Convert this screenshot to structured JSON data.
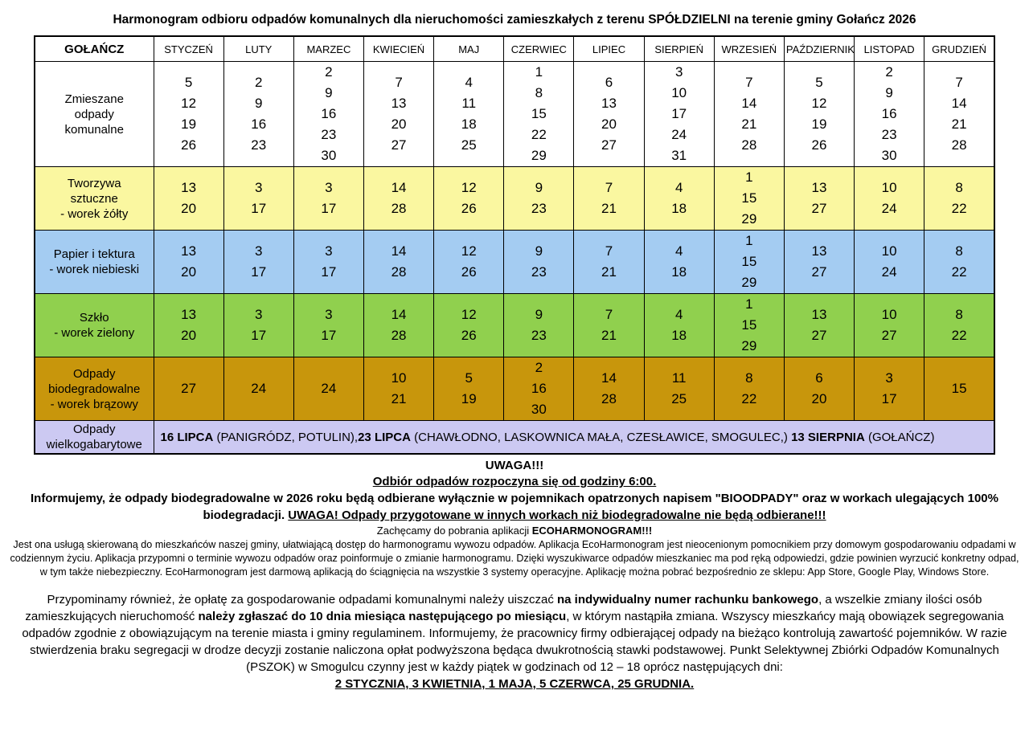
{
  "title": "Harmonogram odbioru odpadów komunalnych dla nieruchomości zamieszkałych z terenu SPÓŁDZIELNI na terenie gminy Gołańcz 2026",
  "colors": {
    "mixed_row_bg": "#FFFFFF",
    "plastic_row_bg": "#FAF7A0",
    "paper_row_bg": "#A4CCF2",
    "glass_row_bg": "#90D04E",
    "bio_row_bg": "#C8960C",
    "bulky_row_bg": "#CCC9F2",
    "border": "#000000"
  },
  "table": {
    "corner_label": "GOŁAŃCZ",
    "months": [
      "STYCZEŃ",
      "LUTY",
      "MARZEC",
      "KWIECIEŃ",
      "MAJ",
      "CZERWIEC",
      "LIPIEC",
      "SIERPIEŃ",
      "WRZESIEŃ",
      "PAŹDZIERNIK",
      "LISTOPAD",
      "GRUDZIEŃ"
    ],
    "rows": [
      {
        "id": "mixed-municipal-waste",
        "label_lines": [
          "Zmieszane",
          "odpady",
          "komunalne"
        ],
        "bg": "#FFFFFF",
        "cells": [
          [
            5,
            12,
            19,
            26
          ],
          [
            2,
            9,
            16,
            23
          ],
          [
            2,
            9,
            16,
            23,
            30
          ],
          [
            7,
            13,
            20,
            27
          ],
          [
            4,
            11,
            18,
            25
          ],
          [
            1,
            8,
            15,
            22,
            29
          ],
          [
            6,
            13,
            20,
            27
          ],
          [
            3,
            10,
            17,
            24,
            31
          ],
          [
            7,
            14,
            21,
            28
          ],
          [
            5,
            12,
            19,
            26
          ],
          [
            2,
            9,
            16,
            23,
            30
          ],
          [
            7,
            14,
            21,
            28
          ]
        ]
      },
      {
        "id": "plastics-yellow-bag",
        "label_lines": [
          "Tworzywa",
          "sztuczne",
          "- worek żółty"
        ],
        "bg": "#FAF7A0",
        "cells": [
          [
            13,
            20
          ],
          [
            3,
            17
          ],
          [
            3,
            17
          ],
          [
            14,
            28
          ],
          [
            12,
            26
          ],
          [
            9,
            23
          ],
          [
            7,
            21
          ],
          [
            4,
            18
          ],
          [
            1,
            15,
            29
          ],
          [
            13,
            27
          ],
          [
            10,
            24
          ],
          [
            8,
            22
          ]
        ]
      },
      {
        "id": "paper-blue-bag",
        "label_lines": [
          "Papier i tektura",
          "- worek niebieski"
        ],
        "bg": "#A4CCF2",
        "cells": [
          [
            13,
            20
          ],
          [
            3,
            17
          ],
          [
            3,
            17
          ],
          [
            14,
            28
          ],
          [
            12,
            26
          ],
          [
            9,
            23
          ],
          [
            7,
            21
          ],
          [
            4,
            18
          ],
          [
            1,
            15,
            29
          ],
          [
            13,
            27
          ],
          [
            10,
            24
          ],
          [
            8,
            22
          ]
        ]
      },
      {
        "id": "glass-green-bag",
        "label_lines": [
          "Szkło",
          "- worek zielony"
        ],
        "bg": "#90D04E",
        "cells": [
          [
            13,
            20
          ],
          [
            3,
            17
          ],
          [
            3,
            17
          ],
          [
            14,
            28
          ],
          [
            12,
            26
          ],
          [
            9,
            23
          ],
          [
            7,
            21
          ],
          [
            4,
            18
          ],
          [
            1,
            15,
            29
          ],
          [
            13,
            27
          ],
          [
            10,
            27
          ],
          [
            8,
            22
          ]
        ]
      },
      {
        "id": "biodegradable-brown-bag",
        "label_lines": [
          "Odpady",
          "biodegradowalne",
          "- worek brązowy"
        ],
        "bg": "#C8960C",
        "cells": [
          [
            27
          ],
          [
            24
          ],
          [
            24
          ],
          [
            10,
            21
          ],
          [
            5,
            19
          ],
          [
            2,
            16,
            30
          ],
          [
            14,
            28
          ],
          [
            11,
            25
          ],
          [
            8,
            22
          ],
          [
            6,
            20
          ],
          [
            3,
            17
          ],
          [
            15
          ]
        ]
      }
    ],
    "bulky_row": {
      "id": "bulky-waste",
      "label_lines": [
        "Odpady",
        "wielkogabarytowe"
      ],
      "bg": "#CCC9F2",
      "segments": [
        {
          "text": "16 LIPCA",
          "bold": true
        },
        {
          "text": " (PANIGRÓDZ, POTULIN),",
          "bold": false
        },
        {
          "text": "23 LIPCA",
          "bold": true
        },
        {
          "text": " (CHAWŁODNO, LASKOWNICA MAŁA, CZESŁAWICE, SMOGULEC,) ",
          "bold": false
        },
        {
          "text": "13 SIERPNIA",
          "bold": true
        },
        {
          "text": " (GOŁAŃCZ)",
          "bold": false
        }
      ]
    }
  },
  "notes": {
    "uwaga_heading": [
      {
        "text": "UWAGA!!!",
        "bold": true
      }
    ],
    "start_time": [
      {
        "text": "Odbiór odpadów rozpoczyna się od godziny 6:00.",
        "bold": true,
        "underline": true
      }
    ],
    "bio_info": [
      {
        "text": "Informujemy, że odpady biodegradowalne w 2026 roku będą odbierane wyłącznie w pojemnikach opatrzonych napisem \"BIOODPADY\" oraz w workach ulegających 100% biodegradacji. ",
        "bold": true
      },
      {
        "text": "UWAGA! Odpady przygotowane w innych workach niż biodegradowalne nie będą odbierane!!!",
        "bold": true,
        "underline": true
      }
    ],
    "app_encourage": [
      {
        "text": "Zachęcamy do pobrania aplikacji ",
        "bold": false
      },
      {
        "text": "ECOHARMONOGRAM!!!",
        "bold": true
      }
    ],
    "app_description": [
      {
        "text": "Jest ona usługą skierowaną do mieszkańców naszej gminy, ułatwiającą dostęp do harmonogramu wywozu odpadów. Aplikacja EcoHarmonogram jest nieocenionym pomocnikiem przy domowym gospodarowaniu odpadami w codziennym życiu. Aplikacja przypomni o terminie wywozu odpadów oraz poinformuje o zmianie harmonogramu. Dzięki wyszukiwarce odpadów mieszkaniec ma pod ręką odpowiedzi, gdzie powinien wyrzucić konkretny odpad, w tym także niebezpieczny. EcoHarmonogram jest darmową aplikacją do ściągnięcia na wszystkie 3 systemy operacyjne. Aplikację można pobrać bezpośrednio ze sklepu: App Store, Google Play, Windows Store.",
        "bold": false
      }
    ],
    "payment_info": [
      {
        "text": "Przypominamy również, że opłatę za gospodarowanie odpadami komunalnymi należy uiszczać ",
        "bold": false
      },
      {
        "text": "na indywidualny numer rachunku bankowego",
        "bold": true
      },
      {
        "text": ", a wszelkie zmiany ilości osób zamieszkujących nieruchomość ",
        "bold": false
      },
      {
        "text": "należy zgłaszać do 10 dnia miesiąca następującego po miesiącu",
        "bold": true
      },
      {
        "text": ", w którym nastąpiła zmiana. Wszyscy mieszkańcy mają obowiązek segregowania odpadów zgodnie z obowiązującym na terenie miasta i gminy regulaminem. Informujemy, że pracownicy firmy odbierającej odpady na bieżąco kontrolują zawartość pojemników. W razie stwierdzenia braku segregacji w drodze decyzji zostanie naliczona opłat podwyższona będąca dwukrotnością stawki podstawowej. Punkt Selektywnej Zbiórki Odpadów Komunalnych (PSZOK) w Smogulcu czynny jest w każdy piątek w godzinach od 12 – 18 oprócz następujących dni:",
        "bold": false
      }
    ],
    "pszok_closed_days": [
      {
        "text": "2 STYCZNIA, 3 KWIETNIA, 1 MAJA, 5 CZERWCA, 25 GRUDNIA.",
        "bold": true,
        "underline": true
      }
    ]
  }
}
